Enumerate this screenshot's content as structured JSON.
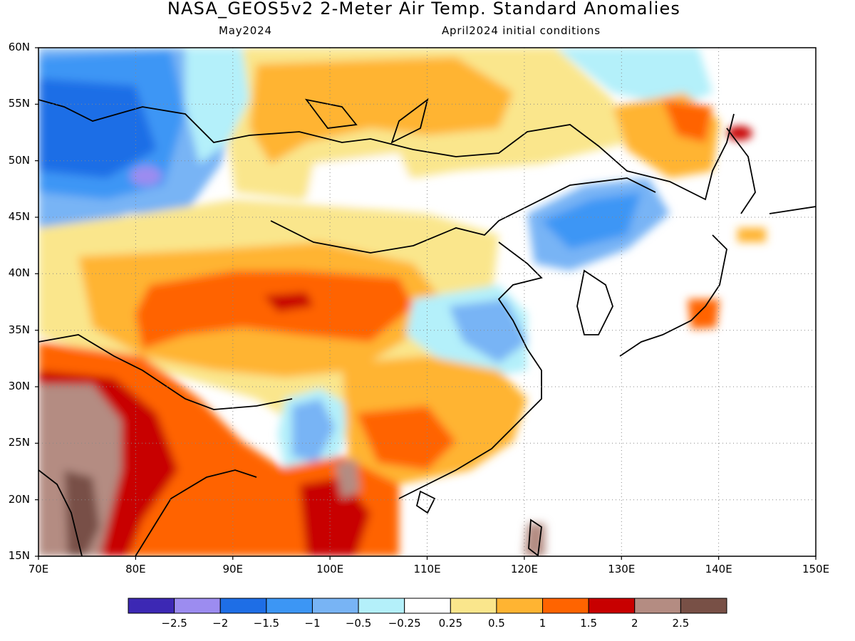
{
  "title": "NASA_GEOS5v2 2-Meter Air Temp. Standard Anomalies",
  "subtitle_left": "May2024",
  "subtitle_right": "April2024 initial conditions",
  "lat_ticks": [
    "60N",
    "55N",
    "50N",
    "45N",
    "40N",
    "35N",
    "30N",
    "25N",
    "20N",
    "15N"
  ],
  "lon_ticks": [
    "70E",
    "80E",
    "90E",
    "100E",
    "110E",
    "120E",
    "130E",
    "140E",
    "150E"
  ],
  "map_extent": {
    "lon": [
      70,
      150
    ],
    "lat": [
      15,
      60
    ]
  },
  "colorbar": {
    "labels": [
      "-2.5",
      "-2",
      "-1.5",
      "-1",
      "-0.5",
      "-0.25",
      "0.25",
      "0.5",
      "1",
      "1.5",
      "2",
      "2.5"
    ],
    "colors": [
      "#3c28b4",
      "#9c8cf0",
      "#1e6ee6",
      "#3c96f5",
      "#78b4f5",
      "#b4f0fa",
      "#ffffff",
      "#fae68c",
      "#ffb432",
      "#ff6400",
      "#c80000",
      "#b48c82",
      "#785046"
    ]
  }
}
